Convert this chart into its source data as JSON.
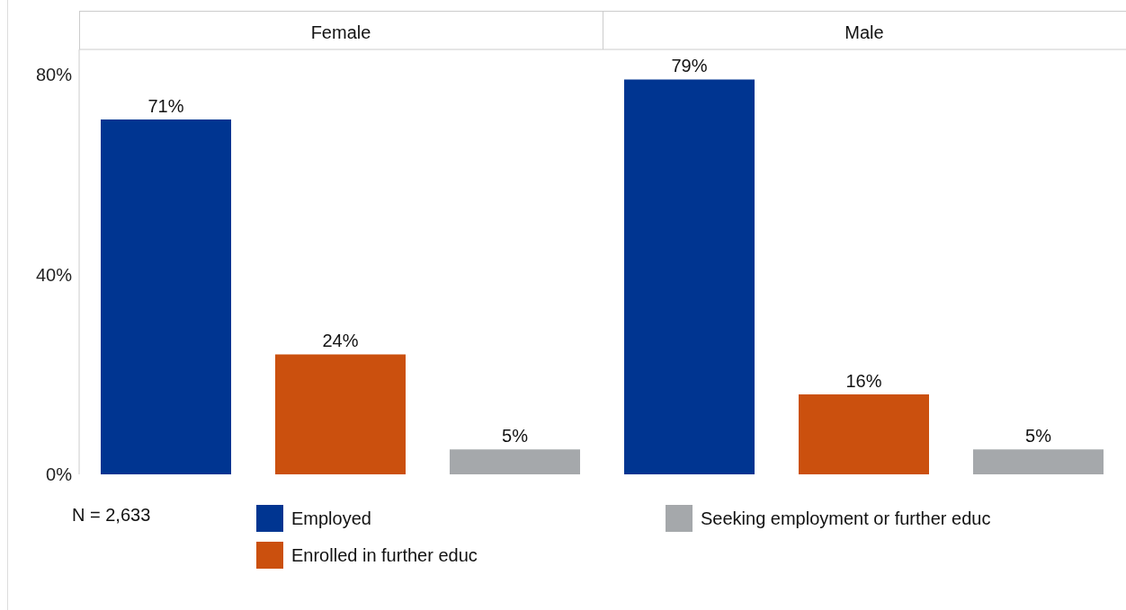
{
  "chart_data": {
    "type": "bar",
    "categories": [
      "Female",
      "Male"
    ],
    "series": [
      {
        "name": "Employed",
        "color": "#003591",
        "values": [
          71,
          79
        ],
        "value_labels": [
          "71%",
          "79%"
        ]
      },
      {
        "name": "Enrolled in further educ",
        "color": "#cb500e",
        "values": [
          24,
          16
        ],
        "value_labels": [
          "24%",
          "16%"
        ]
      },
      {
        "name": "Seeking employment or further educ",
        "color": "#a5a8ab",
        "values": [
          5,
          5
        ],
        "value_labels": [
          "5%",
          "5%"
        ]
      }
    ],
    "ylim": [
      0,
      85
    ],
    "yticks": [
      {
        "value": 0,
        "label": "0%"
      },
      {
        "value": 40,
        "label": "40%"
      },
      {
        "value": 80,
        "label": "80%"
      }
    ],
    "grid": false,
    "legend": "bottom",
    "annotations": [
      "N = 2,633"
    ]
  }
}
